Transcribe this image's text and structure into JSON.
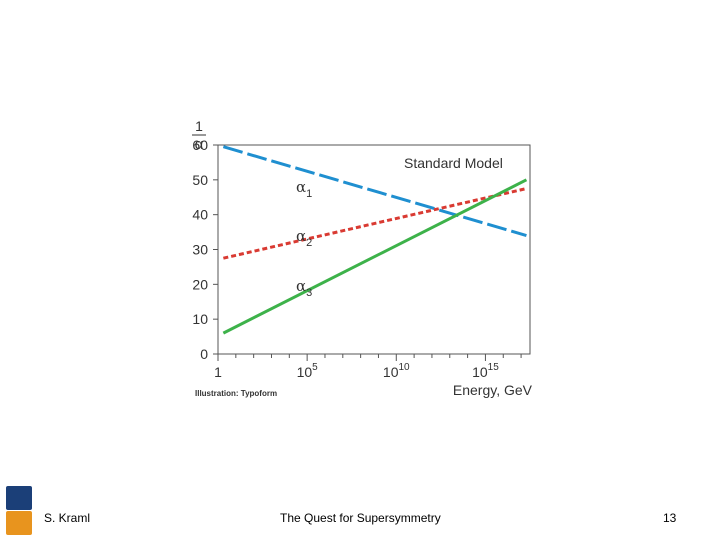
{
  "chart_data": {
    "type": "line",
    "inner_title": "Standard Model",
    "ylabel_num": "1",
    "ylabel_den": "α",
    "xlabel": "Energy, GeV",
    "credit": "Illustration: Typoform",
    "xlim": [
      0,
      17.5
    ],
    "ylim": [
      0,
      60
    ],
    "yticks": [
      0,
      10,
      20,
      30,
      40,
      50,
      60
    ],
    "xticks": [
      {
        "value": 0,
        "base": "1",
        "exp": ""
      },
      {
        "value": 5,
        "base": "10",
        "exp": "5"
      },
      {
        "value": 10,
        "base": "10",
        "exp": "10"
      },
      {
        "value": 15,
        "base": "10",
        "exp": "15"
      }
    ],
    "series": [
      {
        "name": "α1",
        "greek": "α",
        "sub": "1",
        "color": "#1f8fd0",
        "dash": "long",
        "x": [
          0.3,
          17.3
        ],
        "y": [
          59.5,
          34
        ]
      },
      {
        "name": "α2",
        "greek": "α",
        "sub": "2",
        "color": "#d93a32",
        "dash": "short",
        "x": [
          0.3,
          17.3
        ],
        "y": [
          27.5,
          47.5
        ]
      },
      {
        "name": "α3",
        "greek": "α",
        "sub": "3",
        "color": "#3db24a",
        "dash": "solid",
        "x": [
          0.3,
          17.3
        ],
        "y": [
          6,
          50
        ]
      }
    ]
  },
  "footer": {
    "author": "S. Kraml",
    "title": "The Quest for Supersymmetry",
    "page": "13"
  }
}
